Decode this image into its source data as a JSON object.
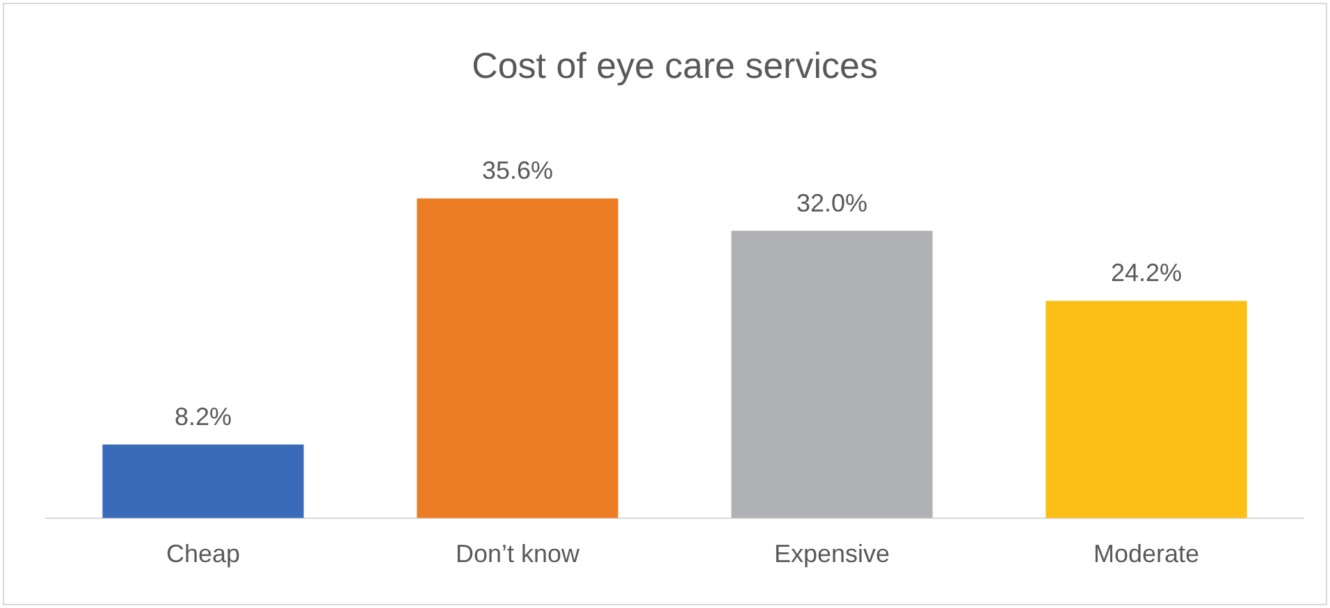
{
  "chart_data": {
    "type": "bar",
    "title": "Cost of eye care services",
    "categories": [
      "Cheap",
      "Don’t know",
      "Expensive",
      "Moderate"
    ],
    "values": [
      8.2,
      35.6,
      32.0,
      24.2
    ],
    "colors": [
      "#3a6bba",
      "#ed7d25",
      "#b0b1b4",
      "#fbbf16"
    ],
    "value_labels": [
      "8.2%",
      "35.6%",
      "32.0%",
      "24.2%"
    ],
    "grid": false,
    "legend": false
  }
}
